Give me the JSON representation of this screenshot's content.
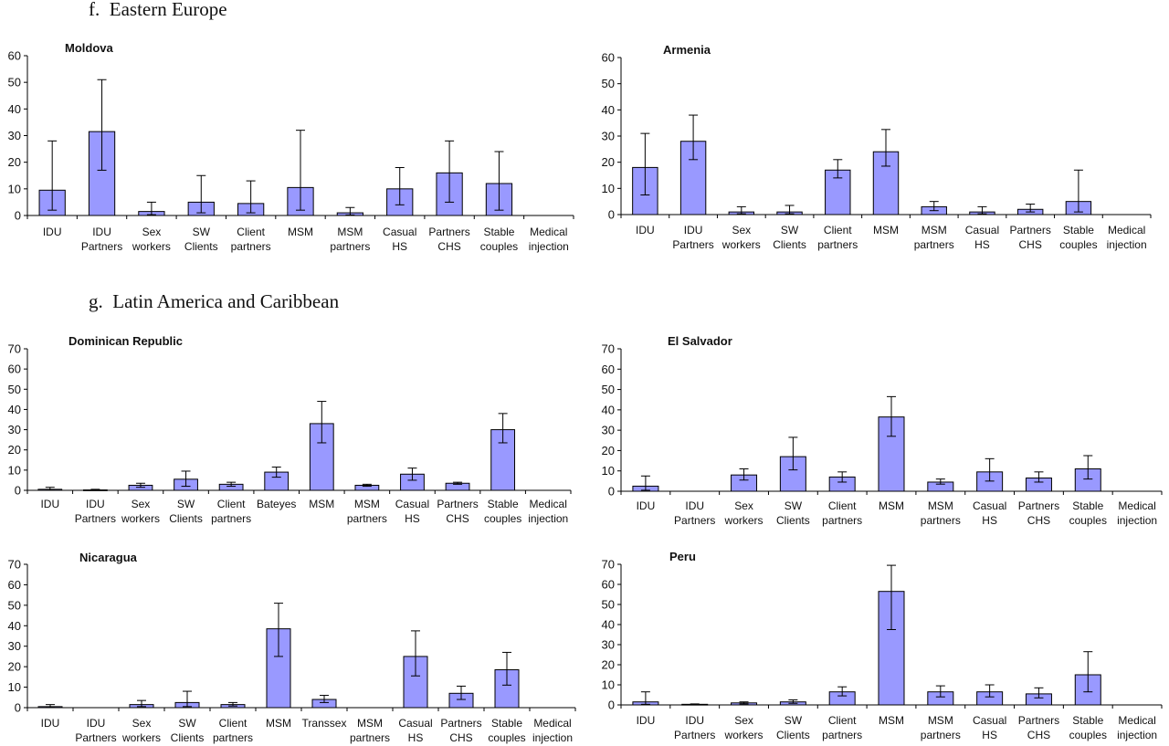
{
  "sections": [
    {
      "label": "f.",
      "title": "Eastern Europe"
    },
    {
      "label": "g.",
      "title": "Latin America and Caribbean"
    }
  ],
  "colors": {
    "bar": "#9999ff",
    "outline": "#000000"
  },
  "chart_data": [
    {
      "type": "bar",
      "title": "Moldova",
      "ylim": [
        0,
        60
      ],
      "yticks": [
        0,
        10,
        20,
        30,
        40,
        50,
        60
      ],
      "categories": [
        [
          "IDU"
        ],
        [
          "IDU",
          "Partners"
        ],
        [
          "Sex",
          "workers"
        ],
        [
          "SW",
          "Clients"
        ],
        [
          "Client",
          "partners"
        ],
        [
          "MSM"
        ],
        [
          "MSM",
          "partners"
        ],
        [
          "Casual",
          "HS"
        ],
        [
          "Partners",
          "CHS"
        ],
        [
          "Stable",
          "couples"
        ],
        [
          "Medical",
          "injection"
        ]
      ],
      "values": [
        9.5,
        31.5,
        1.5,
        5,
        4.5,
        10.5,
        1,
        10,
        16,
        12,
        0
      ],
      "error_low": [
        2,
        17,
        0.3,
        1,
        1,
        2,
        0.2,
        4,
        5,
        2,
        0
      ],
      "error_high": [
        28,
        51,
        5,
        15,
        13,
        32,
        3,
        18,
        28,
        24,
        0
      ],
      "grid": false
    },
    {
      "type": "bar",
      "title": "Armenia",
      "ylim": [
        0,
        60
      ],
      "yticks": [
        0,
        10,
        20,
        30,
        40,
        50,
        60
      ],
      "categories": [
        [
          "IDU"
        ],
        [
          "IDU",
          "Partners"
        ],
        [
          "Sex",
          "workers"
        ],
        [
          "SW",
          "Clients"
        ],
        [
          "Client",
          "partners"
        ],
        [
          "MSM"
        ],
        [
          "MSM",
          "partners"
        ],
        [
          "Casual",
          "HS"
        ],
        [
          "Partners",
          "CHS"
        ],
        [
          "Stable",
          "couples"
        ],
        [
          "Medical",
          "injection"
        ]
      ],
      "values": [
        18,
        28,
        1,
        1,
        17,
        24,
        3,
        1,
        2,
        5,
        0
      ],
      "error_low": [
        7.5,
        21,
        0.3,
        0.3,
        14,
        18.5,
        1.5,
        0.3,
        1,
        1,
        0
      ],
      "error_high": [
        31,
        38,
        3,
        3.5,
        21,
        32.5,
        5,
        3,
        4,
        17,
        0
      ],
      "grid": false
    },
    {
      "type": "bar",
      "title": "Dominican Republic",
      "ylim": [
        0,
        70
      ],
      "yticks": [
        0,
        10,
        20,
        30,
        40,
        50,
        60,
        70
      ],
      "categories": [
        [
          "IDU"
        ],
        [
          "IDU",
          "Partners"
        ],
        [
          "Sex",
          "workers"
        ],
        [
          "SW",
          "Clients"
        ],
        [
          "Client",
          "partners"
        ],
        [
          "Bateyes"
        ],
        [
          "MSM"
        ],
        [
          "MSM",
          "partners"
        ],
        [
          "Casual",
          "HS"
        ],
        [
          "Partners",
          "CHS"
        ],
        [
          "Stable",
          "couples"
        ],
        [
          "Medical",
          "injection"
        ]
      ],
      "values": [
        0.5,
        0.2,
        2.5,
        5.5,
        3,
        9,
        33,
        2.5,
        8,
        3.5,
        30,
        0
      ],
      "error_low": [
        0.1,
        0,
        1.5,
        2,
        2,
        6.5,
        23.5,
        2,
        5,
        3,
        23.5,
        0
      ],
      "error_high": [
        1.5,
        0.5,
        3.5,
        9.5,
        4,
        11.5,
        44,
        3,
        11,
        4,
        38,
        0
      ],
      "grid": false
    },
    {
      "type": "bar",
      "title": "El Salvador",
      "ylim": [
        0,
        70
      ],
      "yticks": [
        0,
        10,
        20,
        30,
        40,
        50,
        60,
        70
      ],
      "categories": [
        [
          "IDU"
        ],
        [
          "IDU",
          "Partners"
        ],
        [
          "Sex",
          "workers"
        ],
        [
          "SW",
          "Clients"
        ],
        [
          "Client",
          "partners"
        ],
        [
          "MSM"
        ],
        [
          "MSM",
          "partners"
        ],
        [
          "Casual",
          "HS"
        ],
        [
          "Partners",
          "CHS"
        ],
        [
          "Stable",
          "couples"
        ],
        [
          "Medical",
          "injection"
        ]
      ],
      "values": [
        2.5,
        0,
        8,
        17,
        7,
        36.5,
        4.5,
        9.5,
        6.5,
        11,
        0
      ],
      "error_low": [
        0.5,
        0,
        5.5,
        10.5,
        4.5,
        27,
        3.5,
        5,
        4.5,
        6,
        0
      ],
      "error_high": [
        7.5,
        0,
        11,
        26.5,
        9.5,
        46.5,
        6,
        16,
        9.5,
        17.5,
        0
      ],
      "grid": false
    },
    {
      "type": "bar",
      "title": "Nicaragua",
      "ylim": [
        0,
        70
      ],
      "yticks": [
        0,
        10,
        20,
        30,
        40,
        50,
        60,
        70
      ],
      "categories": [
        [
          "IDU"
        ],
        [
          "IDU",
          "Partners"
        ],
        [
          "Sex",
          "workers"
        ],
        [
          "SW",
          "Clients"
        ],
        [
          "Client",
          "partners"
        ],
        [
          "MSM"
        ],
        [
          "Transsex"
        ],
        [
          "MSM",
          "partners"
        ],
        [
          "Casual",
          "HS"
        ],
        [
          "Partners",
          "CHS"
        ],
        [
          "Stable",
          "couples"
        ],
        [
          "Medical",
          "injection"
        ]
      ],
      "values": [
        0.5,
        0,
        1.5,
        2.5,
        1.5,
        38.5,
        4,
        0,
        25,
        7,
        18.5,
        0
      ],
      "error_low": [
        0.1,
        0,
        0.5,
        0.5,
        0.8,
        25,
        2.5,
        0,
        15.5,
        4,
        11,
        0
      ],
      "error_high": [
        1.5,
        0,
        3.5,
        8,
        2.5,
        51,
        6,
        0,
        37.5,
        10.5,
        27,
        0
      ],
      "grid": false
    },
    {
      "type": "bar",
      "title": "Peru",
      "ylim": [
        0,
        70
      ],
      "yticks": [
        0,
        10,
        20,
        30,
        40,
        50,
        60,
        70
      ],
      "categories": [
        [
          "IDU"
        ],
        [
          "IDU",
          "Partners"
        ],
        [
          "Sex",
          "workers"
        ],
        [
          "SW",
          "Clients"
        ],
        [
          "Client",
          "partners"
        ],
        [
          "MSM"
        ],
        [
          "MSM",
          "partners"
        ],
        [
          "Casual",
          "HS"
        ],
        [
          "Partners",
          "CHS"
        ],
        [
          "Stable",
          "couples"
        ],
        [
          "Medical",
          "injection"
        ]
      ],
      "values": [
        1.5,
        0.3,
        1,
        1.5,
        6.5,
        56.5,
        6.5,
        6.5,
        5.5,
        15,
        0
      ],
      "error_low": [
        0.3,
        0.1,
        0.5,
        0.8,
        4.5,
        37.5,
        4,
        4,
        3.5,
        6.5,
        0
      ],
      "error_high": [
        6.5,
        0.5,
        1.5,
        2.5,
        9,
        69.5,
        9.5,
        10,
        8.5,
        26.5,
        0
      ],
      "grid": false
    }
  ]
}
